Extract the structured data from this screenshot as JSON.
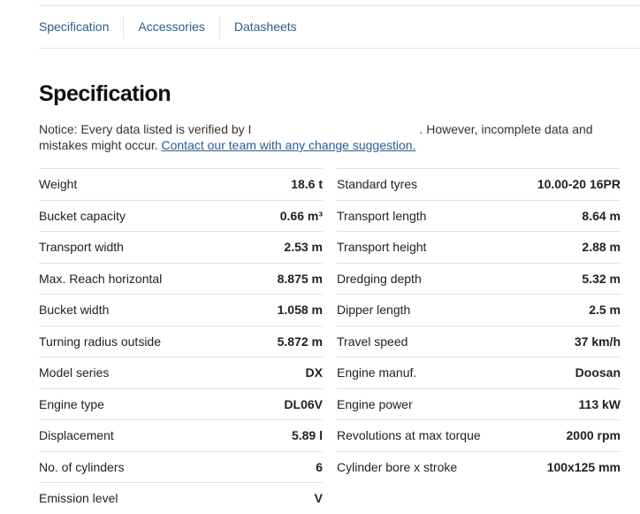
{
  "tabs": [
    {
      "label": "Specification"
    },
    {
      "label": "Accessories"
    },
    {
      "label": "Datasheets"
    }
  ],
  "title": "Specification",
  "notice": {
    "text_before": "Notice: Every data listed is verified by I",
    "text_after": ". However, incomplete data and mistakes might occur. ",
    "link": "Contact our team with any change suggestion."
  },
  "left": [
    {
      "label": "Weight",
      "value": "18.6 t"
    },
    {
      "label": "Bucket capacity",
      "value": "0.66 m³"
    },
    {
      "label": "Transport width",
      "value": "2.53 m"
    },
    {
      "label": "Max. Reach horizontal",
      "value": "8.875 m"
    },
    {
      "label": "Bucket width",
      "value": "1.058 m"
    },
    {
      "label": "Turning radius outside",
      "value": "5.872 m"
    },
    {
      "label": "Model series",
      "value": "DX"
    },
    {
      "label": "Engine type",
      "value": "DL06V"
    },
    {
      "label": "Displacement",
      "value": "5.89 l"
    },
    {
      "label": "No. of cylinders",
      "value": "6"
    },
    {
      "label": "Emission level",
      "value": "V"
    }
  ],
  "right": [
    {
      "label": "Standard tyres",
      "value": "10.00-20 16PR"
    },
    {
      "label": "Transport length",
      "value": "8.64 m"
    },
    {
      "label": "Transport height",
      "value": "2.88 m"
    },
    {
      "label": "Dredging depth",
      "value": "5.32 m"
    },
    {
      "label": "Dipper length",
      "value": "2.5 m"
    },
    {
      "label": "Travel speed",
      "value": "37 km/h"
    },
    {
      "label": "Engine manuf.",
      "value": "Doosan"
    },
    {
      "label": "Engine power",
      "value": "113 kW"
    },
    {
      "label": "Revolutions at max torque",
      "value": "2000 rpm"
    },
    {
      "label": "Cylinder bore x stroke",
      "value": "100x125 mm"
    }
  ]
}
